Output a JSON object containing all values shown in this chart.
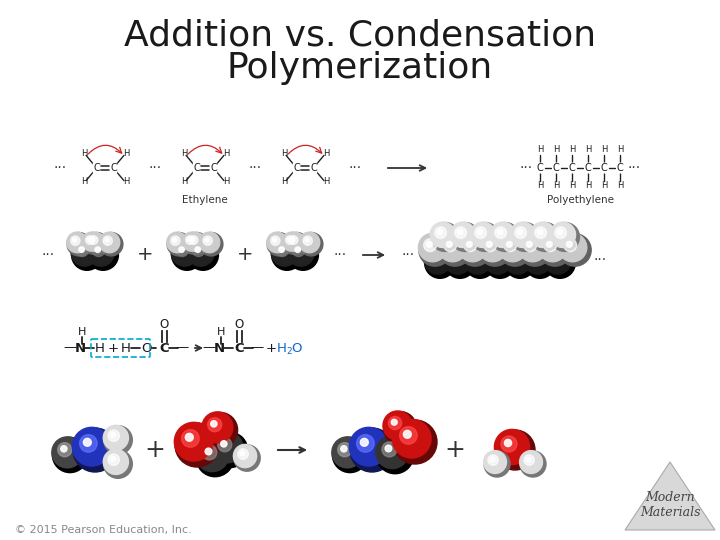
{
  "title_line1": "Addition vs. Condensation",
  "title_line2": "Polymerization",
  "title_fontsize": 26,
  "title_color": "#1a1a1a",
  "bg_color": "#ffffff",
  "copyright_text": "© 2015 Pearson Education, Inc.",
  "copyright_fontsize": 8,
  "copyright_color": "#888888",
  "watermark_text": "Modern\nMaterials",
  "watermark_fontsize": 9,
  "watermark_color": "#444444",
  "fig_width": 7.2,
  "fig_height": 5.4,
  "dpi": 100
}
